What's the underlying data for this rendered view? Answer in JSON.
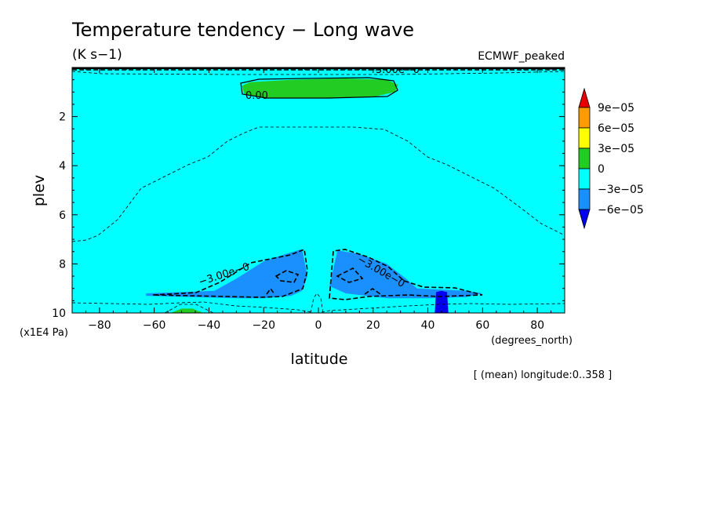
{
  "chart_data": {
    "type": "contour",
    "title": "Temperature tendency − Long wave",
    "units": "(K s−1)",
    "dataset": "ECMWF_peaked",
    "xlabel": "latitude",
    "x_units": "(degrees_north)",
    "ylabel": "plev",
    "y_units": "(x1E4 Pa)",
    "footnote": "[ (mean) longitude:0..358 ]",
    "xlim": [
      -90,
      90
    ],
    "ylim": [
      10,
      0
    ],
    "x_ticks": [
      -80,
      -60,
      -40,
      -20,
      0,
      20,
      40,
      60,
      80
    ],
    "x_tick_labels": [
      "−80",
      "−60",
      "−40",
      "−20",
      "0",
      "20",
      "40",
      "60",
      "80"
    ],
    "y_ticks": [
      2,
      4,
      6,
      8,
      10
    ],
    "y_tick_labels": [
      "2",
      "4",
      "6",
      "8",
      "10"
    ],
    "color_scale": {
      "levels": [
        9e-05,
        6e-05,
        3e-05,
        0,
        -3e-05,
        -6e-05
      ],
      "labels": [
        "9e−05",
        "6e−05",
        "3e−05",
        "0",
        "−3e−05",
        "−6e−05"
      ],
      "colors": [
        "#e60000",
        "#ff9a00",
        "#ffff00",
        "#22cc22",
        "#00ffff",
        "#1a90ff",
        "#0000ee"
      ]
    },
    "contour_labels": [
      "0.00",
      "−3.00e−0",
      "−3.00e−0",
      "−3.00e−0"
    ],
    "regions": [
      {
        "name": "upper-positive",
        "range": "0 to 3e-05",
        "color": "#22cc22",
        "x": [
          -28,
          -25,
          -10,
          10,
          25,
          29,
          28,
          20,
          0,
          -20,
          -27
        ],
        "y": [
          0.75,
          0.6,
          0.5,
          0.45,
          0.5,
          0.7,
          1.0,
          1.2,
          1.25,
          1.25,
          1.1
        ]
      },
      {
        "name": "lower-left-negative",
        "range": "-6e-05 to -3e-05",
        "color": "#1a90ff",
        "x": [
          -63,
          -38,
          -30,
          -20,
          -12,
          -6,
          -4,
          -6,
          -10,
          -20,
          -30,
          -45,
          -63
        ],
        "y": [
          9.2,
          9.1,
          8.6,
          7.9,
          7.6,
          7.4,
          8.5,
          9.1,
          9.3,
          9.4,
          9.4,
          9.35,
          9.3
        ]
      },
      {
        "name": "lower-right-negative",
        "range": "-6e-05 to -3e-05",
        "color": "#1a90ff",
        "x": [
          4,
          7,
          15,
          25,
          32,
          36,
          45,
          54,
          60,
          54,
          40,
          25,
          10,
          6
        ],
        "y": [
          8.9,
          7.45,
          7.6,
          8.0,
          8.6,
          9.0,
          9.05,
          9.1,
          9.2,
          9.35,
          9.4,
          9.4,
          9.2,
          9.0
        ]
      },
      {
        "name": "lower-right-strong-negative",
        "range": "< -6e-05",
        "color": "#0000ee",
        "x": [
          42.5,
          43,
          45,
          47,
          47.5
        ],
        "y": [
          10,
          9.15,
          9.1,
          9.15,
          10
        ]
      },
      {
        "name": "lower-left-positive",
        "range": "0 to 3e-05",
        "color": "#22cc22",
        "x": [
          -54,
          -50,
          -46,
          -42
        ],
        "y": [
          10,
          9.82,
          9.82,
          10
        ]
      }
    ]
  }
}
